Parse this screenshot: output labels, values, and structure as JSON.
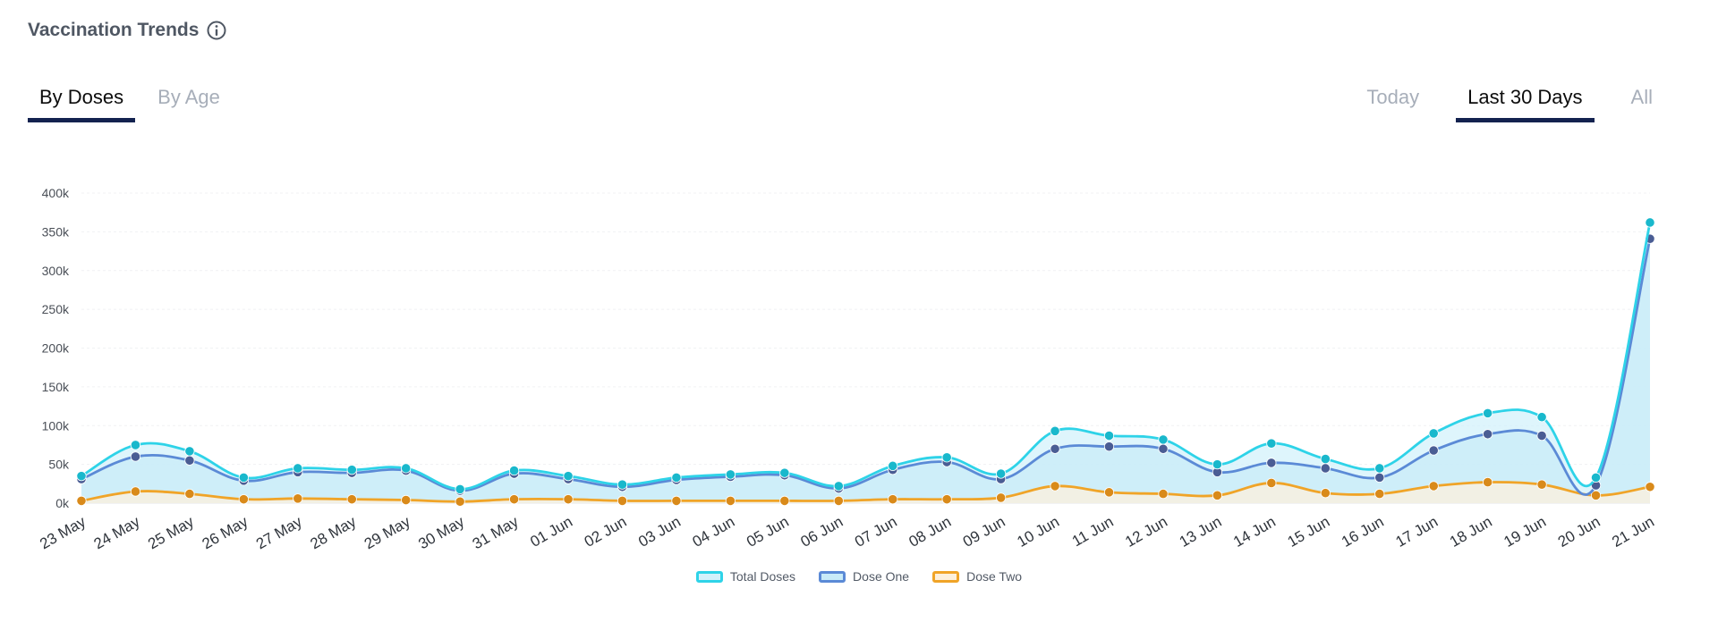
{
  "header": {
    "title": "Vaccination Trends",
    "info_icon": "info-circle-icon"
  },
  "tabs_left": [
    {
      "label": "By Doses",
      "active": true
    },
    {
      "label": "By Age",
      "active": false
    }
  ],
  "tabs_right": [
    {
      "label": "Today",
      "active": false
    },
    {
      "label": "Last 30 Days",
      "active": true
    },
    {
      "label": "All",
      "active": false
    }
  ],
  "chart_data": {
    "type": "area",
    "title": "",
    "xlabel": "",
    "ylabel": "",
    "ylim": [
      0,
      400000
    ],
    "y_ticks": [
      0,
      50000,
      100000,
      150000,
      200000,
      250000,
      300000,
      350000,
      400000
    ],
    "y_tick_labels": [
      "0k",
      "50k",
      "100k",
      "150k",
      "200k",
      "250k",
      "300k",
      "350k",
      "400k"
    ],
    "grid": true,
    "legend_position": "bottom-center",
    "categories": [
      "23 May",
      "24 May",
      "25 May",
      "26 May",
      "27 May",
      "28 May",
      "29 May",
      "30 May",
      "31 May",
      "01 Jun",
      "02 Jun",
      "03 Jun",
      "04 Jun",
      "05 Jun",
      "06 Jun",
      "07 Jun",
      "08 Jun",
      "09 Jun",
      "10 Jun",
      "11 Jun",
      "12 Jun",
      "13 Jun",
      "14 Jun",
      "15 Jun",
      "16 Jun",
      "17 Jun",
      "18 Jun",
      "19 Jun",
      "20 Jun",
      "21 Jun"
    ],
    "series": [
      {
        "name": "Total Doses",
        "color": "#2ed3e8",
        "fill": "#d3f1fb",
        "values": [
          35000,
          75000,
          67000,
          33000,
          45000,
          43000,
          45000,
          18000,
          42000,
          35000,
          24000,
          33000,
          37000,
          39000,
          22000,
          48000,
          59000,
          38000,
          93000,
          87000,
          82000,
          50000,
          77000,
          57000,
          45000,
          90000,
          116000,
          111000,
          33000,
          362000
        ]
      },
      {
        "name": "Dose One",
        "color": "#5b8ad6",
        "fill": "#c8ebf8",
        "values": [
          31000,
          60000,
          55000,
          29000,
          40000,
          39000,
          42000,
          16000,
          38000,
          31000,
          21000,
          30000,
          34000,
          36000,
          19000,
          43000,
          53000,
          31000,
          70000,
          73000,
          70000,
          40000,
          52000,
          45000,
          33000,
          68000,
          89000,
          87000,
          23000,
          341000
        ]
      },
      {
        "name": "Dose Two",
        "color": "#f0a428",
        "fill": "#fdf0dc",
        "values": [
          3000,
          15000,
          12000,
          5000,
          6000,
          5000,
          4000,
          2000,
          5000,
          5000,
          3000,
          3000,
          3000,
          3000,
          3000,
          5000,
          5000,
          7000,
          22000,
          14000,
          12000,
          10000,
          26000,
          13000,
          12000,
          22000,
          27000,
          24000,
          10000,
          21000
        ]
      }
    ]
  }
}
